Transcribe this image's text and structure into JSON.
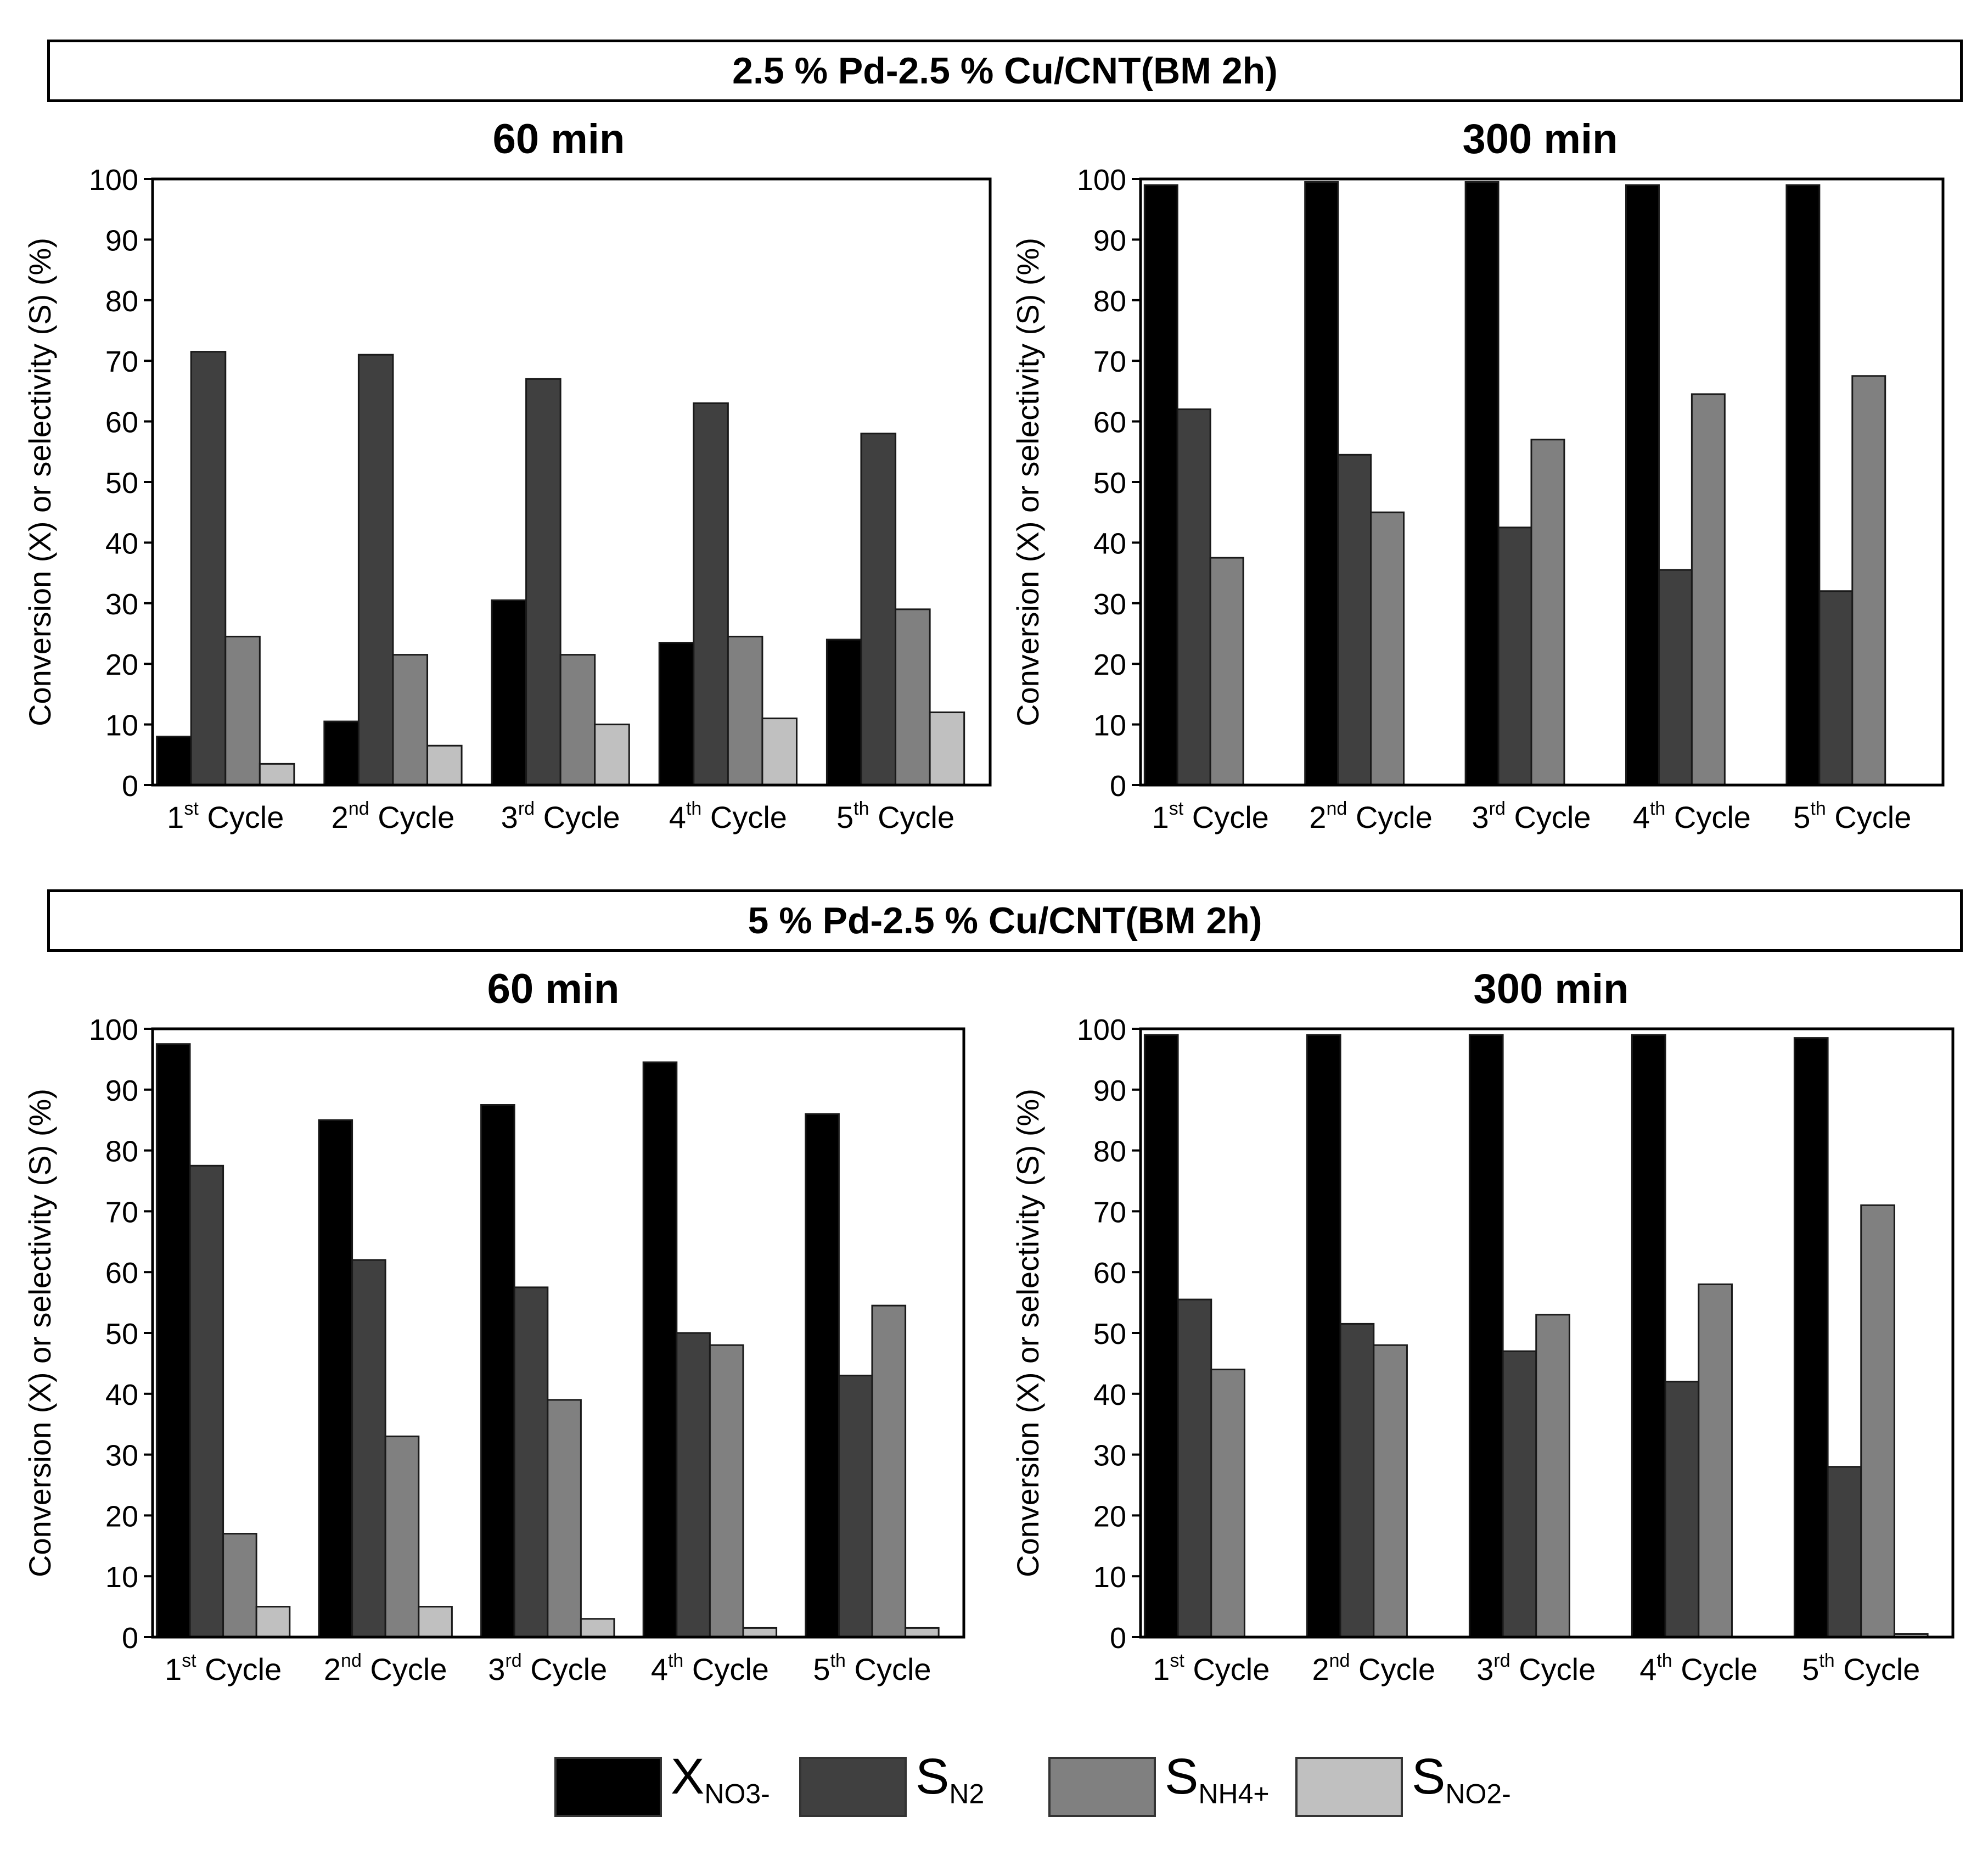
{
  "figure": {
    "top_title": "2.5 % Pd-2.5 % Cu/CNT(BM 2h)",
    "bottom_title": "5 % Pd-2.5 % Cu/CNT(BM 2h)"
  },
  "legend": [
    {
      "main": "X",
      "sub": "NO3-",
      "color": "#000000"
    },
    {
      "main": "S",
      "sub": "N2",
      "color": "#404040"
    },
    {
      "main": "S",
      "sub": "NH4+",
      "color": "#808080"
    },
    {
      "main": "S",
      "sub": "NO2-",
      "color": "#c0c0c0"
    }
  ],
  "chart_data": [
    {
      "type": "bar",
      "title": "60 min",
      "group": "2.5 % Pd-2.5 % Cu/CNT(BM 2h)",
      "ylabel": "Conversion (X) or selectivity (S) (%)",
      "xlabel": "",
      "ylim": [
        0,
        100
      ],
      "yticks": [
        0,
        10,
        20,
        30,
        40,
        50,
        60,
        70,
        80,
        90,
        100
      ],
      "categories": [
        {
          "num": "1",
          "sup": "st",
          "word": "Cycle"
        },
        {
          "num": "2",
          "sup": "nd",
          "word": "Cycle"
        },
        {
          "num": "3",
          "sup": "rd",
          "word": "Cycle"
        },
        {
          "num": "4",
          "sup": "th",
          "word": "Cycle"
        },
        {
          "num": "5",
          "sup": "th",
          "word": "Cycle"
        }
      ],
      "series": [
        {
          "name": "X_NO3-",
          "color": "#000000",
          "values": [
            8,
            10.5,
            30.5,
            23.5,
            24
          ]
        },
        {
          "name": "S_N2",
          "color": "#404040",
          "values": [
            71.5,
            71,
            67,
            63,
            58
          ]
        },
        {
          "name": "S_NH4+",
          "color": "#808080",
          "values": [
            24.5,
            21.5,
            21.5,
            24.5,
            29
          ]
        },
        {
          "name": "S_NO2-",
          "color": "#c0c0c0",
          "values": [
            3.5,
            6.5,
            10,
            11,
            12
          ]
        }
      ]
    },
    {
      "type": "bar",
      "title": "300 min",
      "group": "2.5 % Pd-2.5 % Cu/CNT(BM 2h)",
      "ylabel": "Conversion (X) or selectivity (S) (%)",
      "xlabel": "",
      "ylim": [
        0,
        100
      ],
      "yticks": [
        0,
        10,
        20,
        30,
        40,
        50,
        60,
        70,
        80,
        90,
        100
      ],
      "categories": [
        {
          "num": "1",
          "sup": "st",
          "word": "Cycle"
        },
        {
          "num": "2",
          "sup": "nd",
          "word": "Cycle"
        },
        {
          "num": "3",
          "sup": "rd",
          "word": "Cycle"
        },
        {
          "num": "4",
          "sup": "th",
          "word": "Cycle"
        },
        {
          "num": "5",
          "sup": "th",
          "word": "Cycle"
        }
      ],
      "series": [
        {
          "name": "X_NO3-",
          "color": "#000000",
          "values": [
            99,
            99.5,
            99.5,
            99,
            99
          ]
        },
        {
          "name": "S_N2",
          "color": "#404040",
          "values": [
            62,
            54.5,
            42.5,
            35.5,
            32
          ]
        },
        {
          "name": "S_NH4+",
          "color": "#808080",
          "values": [
            37.5,
            45,
            57,
            64.5,
            67.5
          ]
        },
        {
          "name": "S_NO2-",
          "color": "#c0c0c0",
          "values": [
            0,
            0,
            0,
            0,
            0
          ]
        }
      ]
    },
    {
      "type": "bar",
      "title": "60 min",
      "group": "5 % Pd-2.5 % Cu/CNT(BM 2h)",
      "ylabel": "Conversion (X) or selectivity (S) (%)",
      "xlabel": "",
      "ylim": [
        0,
        100
      ],
      "yticks": [
        0,
        10,
        20,
        30,
        40,
        50,
        60,
        70,
        80,
        90,
        100
      ],
      "categories": [
        {
          "num": "1",
          "sup": "st",
          "word": "Cycle"
        },
        {
          "num": "2",
          "sup": "nd",
          "word": "Cycle"
        },
        {
          "num": "3",
          "sup": "rd",
          "word": "Cycle"
        },
        {
          "num": "4",
          "sup": "th",
          "word": "Cycle"
        },
        {
          "num": "5",
          "sup": "th",
          "word": "Cycle"
        }
      ],
      "series": [
        {
          "name": "X_NO3-",
          "color": "#000000",
          "values": [
            97.5,
            85,
            87.5,
            94.5,
            86
          ]
        },
        {
          "name": "S_N2",
          "color": "#404040",
          "values": [
            77.5,
            62,
            57.5,
            50,
            43
          ]
        },
        {
          "name": "S_NH4+",
          "color": "#808080",
          "values": [
            17,
            33,
            39,
            48,
            54.5
          ]
        },
        {
          "name": "S_NO2-",
          "color": "#c0c0c0",
          "values": [
            5,
            5,
            3,
            1.5,
            1.5
          ]
        }
      ]
    },
    {
      "type": "bar",
      "title": "300 min",
      "group": "5 % Pd-2.5 % Cu/CNT(BM 2h)",
      "ylabel": "Conversion (X) or selectivity (S) (%)",
      "xlabel": "",
      "ylim": [
        0,
        100
      ],
      "yticks": [
        0,
        10,
        20,
        30,
        40,
        50,
        60,
        70,
        80,
        90,
        100
      ],
      "categories": [
        {
          "num": "1",
          "sup": "st",
          "word": "Cycle"
        },
        {
          "num": "2",
          "sup": "nd",
          "word": "Cycle"
        },
        {
          "num": "3",
          "sup": "rd",
          "word": "Cycle"
        },
        {
          "num": "4",
          "sup": "th",
          "word": "Cycle"
        },
        {
          "num": "5",
          "sup": "th",
          "word": "Cycle"
        }
      ],
      "series": [
        {
          "name": "X_NO3-",
          "color": "#000000",
          "values": [
            99,
            99,
            99,
            99,
            98.5
          ]
        },
        {
          "name": "S_N2",
          "color": "#404040",
          "values": [
            55.5,
            51.5,
            47,
            42,
            28
          ]
        },
        {
          "name": "S_NH4+",
          "color": "#808080",
          "values": [
            44,
            48,
            53,
            58,
            71
          ]
        },
        {
          "name": "S_NO2-",
          "color": "#c0c0c0",
          "values": [
            0,
            0,
            0,
            0,
            0.5
          ]
        }
      ]
    }
  ]
}
